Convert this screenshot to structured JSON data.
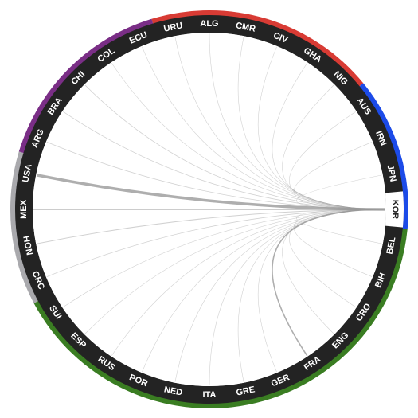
{
  "colors": {
    "ring": "#232323",
    "selected_segment": "#ffffff",
    "selected_label": "#222222",
    "label": "#ffffff",
    "chord": "#9a9a9a"
  },
  "diagram": {
    "selected": "KOR",
    "groups": [
      {
        "color": "#7a2e86",
        "teams": [
          "ARG",
          "BRA",
          "CHI",
          "COL",
          "ECU"
        ]
      },
      {
        "color": "#d83b34",
        "teams": [
          "URU",
          "ALG",
          "CMR",
          "CIV",
          "GHA",
          "NIG"
        ]
      },
      {
        "color": "#1c4be8",
        "teams": [
          "AUS",
          "IRN",
          "JPN",
          "KOR"
        ]
      },
      {
        "color": "#3a7d22",
        "teams": [
          "BEL",
          "BIH",
          "CRO",
          "ENG",
          "FRA",
          "GER",
          "GRE",
          "ITA",
          "NED",
          "POR",
          "RUS",
          "ESP",
          "SUI"
        ]
      },
      {
        "color": "#a9a9ad",
        "teams": [
          "CRC",
          "HON",
          "MEX",
          "USA"
        ]
      }
    ],
    "teams": [
      {
        "code": "KOR",
        "center": 90,
        "span": 10
      },
      {
        "code": "BEL",
        "center": 108,
        "span": 10
      },
      {
        "code": "BIH",
        "center": 123,
        "span": 10
      },
      {
        "code": "CRO",
        "center": 138,
        "span": 10
      },
      {
        "code": "ENG",
        "center": 149,
        "span": 10
      },
      {
        "code": "FRA",
        "center": 160,
        "span": 10
      },
      {
        "code": "GER",
        "center": 172,
        "span": 10
      },
      {
        "code": "GRE",
        "center": 184,
        "span": 10
      },
      {
        "code": "ITA",
        "center": 196,
        "span": 10
      },
      {
        "code": "NED",
        "center": 208,
        "span": 10
      },
      {
        "code": "POR",
        "center": 221,
        "span": 10
      },
      {
        "code": "RUS",
        "center": 234,
        "span": 10
      },
      {
        "code": "ESP",
        "center": 246,
        "span": 10
      },
      {
        "code": "SUI",
        "center": 258,
        "span": 10
      },
      {
        "code": "CRC",
        "center": 280,
        "span": 10
      },
      {
        "code": "HON",
        "center": 295,
        "span": 10
      },
      {
        "code": "MEX",
        "center": 311,
        "span": 10
      },
      {
        "code": "USA",
        "center": 327,
        "span": 10
      },
      {
        "code": "ARG",
        "center": 345,
        "span": 10
      },
      {
        "code": "BRA",
        "center": 359,
        "span": 10
      },
      {
        "code": "CHI",
        "center": 12,
        "span": 10
      },
      {
        "code": "COL",
        "center": 26,
        "span": 10
      },
      {
        "code": "ECU",
        "center": 40,
        "span": 10
      },
      {
        "code": "URU",
        "center": 55,
        "span": 10
      },
      {
        "code": "ALG",
        "center": 69,
        "span": 10
      },
      {
        "code": "CMR",
        "center": 84,
        "span": 10
      },
      {
        "code": "CIV",
        "center": 96,
        "span": 10
      },
      {
        "code": "GHA",
        "center": 106,
        "span": 10
      },
      {
        "code": "NIG",
        "center": 118,
        "span": 10
      },
      {
        "code": "AUS",
        "center": 145,
        "span": 10
      },
      {
        "code": "IRN",
        "center": 160,
        "span": 10
      },
      {
        "code": "JPN",
        "center": 177,
        "span": 10
      }
    ],
    "links": [
      {
        "to": "USA",
        "weight": 3.5
      },
      {
        "to": "FRA",
        "weight": 1.6
      },
      {
        "to": "MEX",
        "weight": 1.3
      },
      {
        "to": "HON",
        "weight": 1.0
      },
      {
        "to": "CRC",
        "weight": 0.8
      },
      {
        "to": "BRA",
        "weight": 0.8
      },
      {
        "to": "ARG",
        "weight": 0.8
      },
      {
        "to": "CHI",
        "weight": 0.8
      },
      {
        "to": "COL",
        "weight": 0.6
      },
      {
        "to": "ECU",
        "weight": 0.6
      },
      {
        "to": "URU",
        "weight": 0.6
      },
      {
        "to": "ALG",
        "weight": 0.6
      },
      {
        "to": "CMR",
        "weight": 0.6
      },
      {
        "to": "CIV",
        "weight": 0.6
      },
      {
        "to": "GHA",
        "weight": 0.6
      },
      {
        "to": "NIG",
        "weight": 0.6
      },
      {
        "to": "AUS",
        "weight": 0.6
      },
      {
        "to": "IRN",
        "weight": 0.6
      },
      {
        "to": "JPN",
        "weight": 0.6
      },
      {
        "to": "BEL",
        "weight": 0.6
      },
      {
        "to": "BIH",
        "weight": 0.6
      },
      {
        "to": "CRO",
        "weight": 0.6
      },
      {
        "to": "ENG",
        "weight": 0.6
      },
      {
        "to": "GER",
        "weight": 0.6
      },
      {
        "to": "GRE",
        "weight": 0.6
      },
      {
        "to": "ITA",
        "weight": 0.6
      },
      {
        "to": "NED",
        "weight": 0.6
      },
      {
        "to": "POR",
        "weight": 0.6
      },
      {
        "to": "RUS",
        "weight": 0.6
      },
      {
        "to": "ESP",
        "weight": 0.6
      },
      {
        "to": "SUI",
        "weight": 0.6
      }
    ]
  }
}
